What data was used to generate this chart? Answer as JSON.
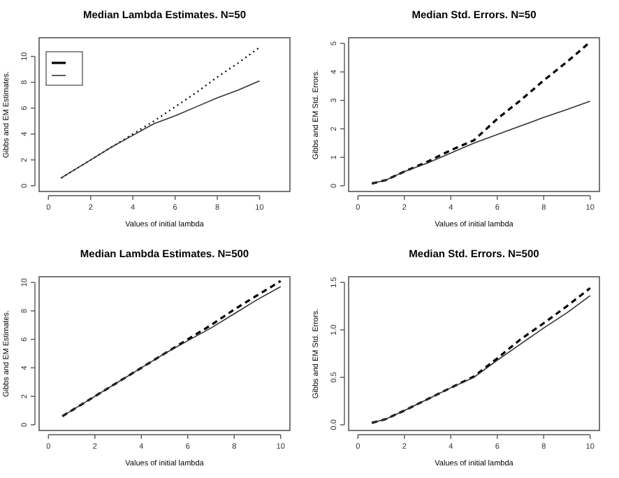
{
  "chart_data": [
    {
      "type": "line",
      "title": "Median Lambda Estimates. N=50",
      "xlabel": "Values of initial lambda",
      "ylabel": "Gibbs and EM Estimates.",
      "x": [
        0.6,
        1.2,
        2,
        3,
        4,
        5,
        6,
        7,
        8,
        9,
        10
      ],
      "xlim": [
        -0.44,
        11.44
      ],
      "xticks": [
        0,
        2,
        4,
        6,
        8,
        10
      ],
      "ylim": [
        -0.44,
        11.44
      ],
      "yticks": [
        0,
        2,
        4,
        6,
        8,
        10
      ],
      "series": [
        {
          "color": "#000000",
          "line_style": "dotted",
          "values": [
            0.6,
            1.2,
            2.0,
            3.0,
            4.0,
            5.0,
            6.1,
            7.2,
            8.4,
            9.5,
            10.7
          ]
        },
        {
          "color": "#333333",
          "line_style": "solid",
          "values": [
            0.6,
            1.2,
            2.0,
            3.0,
            3.9,
            4.8,
            5.4,
            6.1,
            6.8,
            7.4,
            8.1
          ]
        }
      ]
    },
    {
      "type": "line",
      "title": "Median Std. Errors. N=50",
      "xlabel": "Values of initial lambda",
      "ylabel": "Gibbs and EM Std. Errors.",
      "x": [
        0.6,
        1.2,
        2,
        3,
        4,
        5,
        6,
        7,
        8,
        9,
        10
      ],
      "xlim": [
        -0.4,
        10.4
      ],
      "xticks": [
        0,
        2,
        4,
        6,
        8,
        10
      ],
      "ylim": [
        -0.2,
        5.2
      ],
      "yticks": [
        0,
        1,
        2,
        3,
        4,
        5
      ],
      "series": [
        {
          "color": "#000000",
          "line_style": "dashed",
          "values": [
            0.08,
            0.2,
            0.5,
            0.85,
            1.25,
            1.6,
            2.35,
            3.0,
            3.7,
            4.35,
            5.05
          ]
        },
        {
          "color": "#333333",
          "line_style": "solid",
          "values": [
            0.08,
            0.2,
            0.5,
            0.8,
            1.15,
            1.5,
            1.8,
            2.1,
            2.4,
            2.68,
            2.97
          ]
        }
      ]
    },
    {
      "type": "line",
      "title": "Median Lambda Estimates. N=500",
      "xlabel": "Values of initial lambda",
      "ylabel": "Gibbs and EM Estimates.",
      "x": [
        0.6,
        1.2,
        2,
        3,
        4,
        5,
        6,
        7,
        8,
        9,
        10
      ],
      "xlim": [
        -0.4,
        10.4
      ],
      "xticks": [
        0,
        2,
        4,
        6,
        8,
        10
      ],
      "ylim": [
        -0.4,
        10.4
      ],
      "yticks": [
        0,
        2,
        4,
        6,
        8,
        10
      ],
      "series": [
        {
          "color": "#000000",
          "line_style": "dashed",
          "values": [
            0.6,
            1.2,
            2.0,
            3.0,
            4.0,
            5.0,
            6.0,
            7.0,
            8.1,
            9.1,
            10.1
          ]
        },
        {
          "color": "#333333",
          "line_style": "solid",
          "values": [
            0.6,
            1.2,
            2.0,
            3.0,
            4.0,
            5.0,
            5.9,
            6.8,
            7.8,
            8.8,
            9.7
          ]
        }
      ]
    },
    {
      "type": "line",
      "title": "Median Std. Errors. N=500",
      "xlabel": "Values of initial lambda",
      "ylabel": "Gibbs and EM Std. Errors.",
      "x": [
        0.6,
        1.2,
        2,
        3,
        4,
        5,
        6,
        7,
        8,
        9,
        10
      ],
      "xlim": [
        -0.4,
        10.4
      ],
      "xticks": [
        0,
        2,
        4,
        6,
        8,
        10
      ],
      "ylim": [
        -0.06,
        1.56
      ],
      "yticks": [
        {
          "value": 0,
          "label": "0.0"
        },
        {
          "value": 0.5,
          "label": "0.5"
        },
        {
          "value": 1,
          "label": "1.0"
        },
        {
          "value": 1.5,
          "label": "1.5"
        }
      ],
      "series": [
        {
          "color": "#000000",
          "line_style": "dashed",
          "values": [
            0.02,
            0.06,
            0.15,
            0.27,
            0.39,
            0.51,
            0.7,
            0.9,
            1.07,
            1.25,
            1.44
          ]
        },
        {
          "color": "#333333",
          "line_style": "solid",
          "values": [
            0.02,
            0.06,
            0.15,
            0.27,
            0.39,
            0.5,
            0.68,
            0.85,
            1.02,
            1.18,
            1.36
          ]
        }
      ]
    }
  ]
}
